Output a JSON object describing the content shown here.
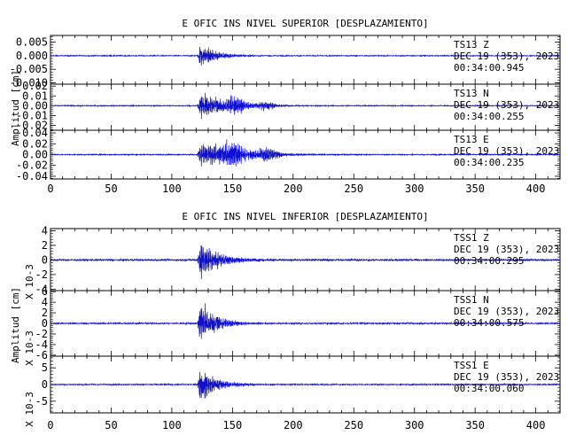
{
  "chart_data": [
    {
      "type": "line",
      "title": "E OFIC INS NIVEL SUPERIOR [DESPLAZAMIENTO]",
      "ylabel": "Amplitud [cm]",
      "xlim": [
        0,
        420
      ],
      "x_ticks": [
        "0",
        "50",
        "100",
        "150",
        "200",
        "250",
        "300",
        "350",
        "400"
      ],
      "line_color": "#1010d0",
      "panels": [
        {
          "component": "Z",
          "ylim": [
            -0.0105,
            0.0075
          ],
          "y_ticks": [
            {
              "v": 0.005,
              "label": "0.005"
            },
            {
              "v": 0.0,
              "label": "0.000"
            },
            {
              "v": -0.005,
              "label": "-0.005"
            },
            {
              "v": -0.01,
              "label": "-0.010"
            }
          ],
          "station": "TS13   Z",
          "date": "DEC 19 (353), 2023",
          "time": "00:34:00.945",
          "signal": {
            "onset": 121,
            "peak": 0.0055,
            "decay": 14,
            "noise": 0.00015,
            "bumps": []
          }
        },
        {
          "component": "N",
          "ylim": [
            -0.025,
            0.022
          ],
          "y_ticks": [
            {
              "v": 0.02,
              "label": "0.02"
            },
            {
              "v": 0.01,
              "label": "0.01"
            },
            {
              "v": 0.0,
              "label": "0.00"
            },
            {
              "v": -0.01,
              "label": "-0.01"
            },
            {
              "v": -0.02,
              "label": "-0.02"
            }
          ],
          "station": "TS13   N",
          "date": "DEC 19 (353), 2023",
          "time": "00:34:00.255",
          "signal": {
            "onset": 121,
            "peak": 0.017,
            "decay": 22,
            "noise": 0.0004,
            "bumps": [
              [
                152,
                0.007,
                8
              ],
              [
                178,
                0.004,
                8
              ]
            ]
          }
        },
        {
          "component": "E",
          "ylim": [
            -0.045,
            0.045
          ],
          "y_ticks": [
            {
              "v": 0.04,
              "label": "0.04"
            },
            {
              "v": 0.02,
              "label": "0.02"
            },
            {
              "v": 0.0,
              "label": "0.00"
            },
            {
              "v": -0.02,
              "label": "-0.02"
            },
            {
              "v": -0.04,
              "label": "-0.04"
            }
          ],
          "station": "TS13   E",
          "date": "DEC 19 (353), 2023",
          "time": "00:34:00.235",
          "signal": {
            "onset": 121,
            "peak": 0.028,
            "decay": 30,
            "noise": 0.0008,
            "bumps": [
              [
                150,
                0.018,
                9
              ],
              [
                178,
                0.011,
                9
              ]
            ]
          }
        }
      ]
    },
    {
      "type": "line",
      "title": "E OFIC INS NIVEL INFERIOR [DESPLAZAMIENTO]",
      "ylabel": "Amplitud [cm]",
      "scale_label": "X 10-3",
      "xlim": [
        0,
        420
      ],
      "x_ticks": [
        "0",
        "50",
        "100",
        "150",
        "200",
        "250",
        "300",
        "350",
        "400"
      ],
      "line_color": "#1010d0",
      "panels": [
        {
          "component": "Z",
          "ylim": [
            -4.2,
            4.3
          ],
          "y_ticks": [
            {
              "v": 4,
              "label": "4"
            },
            {
              "v": 2,
              "label": "2"
            },
            {
              "v": 0,
              "label": "0"
            },
            {
              "v": -2,
              "label": "-2"
            },
            {
              "v": -4,
              "label": "-4"
            }
          ],
          "station": "TSS1   Z",
          "date": "DEC 19 (353), 2023",
          "time": "00:34:00.295",
          "signal": {
            "onset": 121,
            "peak": 3.6,
            "decay": 16,
            "noise": 0.1,
            "bumps": []
          }
        },
        {
          "component": "N",
          "ylim": [
            -6.2,
            6.2
          ],
          "y_ticks": [
            {
              "v": 6,
              "label": "6"
            },
            {
              "v": 4,
              "label": "4"
            },
            {
              "v": 2,
              "label": "2"
            },
            {
              "v": 0,
              "label": "0"
            },
            {
              "v": -2,
              "label": "-2"
            },
            {
              "v": -4,
              "label": "-4"
            },
            {
              "v": -6,
              "label": "-6"
            }
          ],
          "station": "TSS1   N",
          "date": "DEC 19 (353), 2023",
          "time": "00:34:00.575",
          "signal": {
            "onset": 121,
            "peak": 5.2,
            "decay": 13,
            "noise": 0.12,
            "bumps": []
          }
        },
        {
          "component": "E",
          "ylim": [
            -8.5,
            8.5
          ],
          "y_ticks": [
            {
              "v": 5,
              "label": "5"
            },
            {
              "v": 0,
              "label": "0"
            },
            {
              "v": -5,
              "label": "-5"
            }
          ],
          "station": "TSS1   E",
          "date": "DEC 19 (353), 2023",
          "time": "00:34:00.060",
          "signal": {
            "onset": 121,
            "peak": 6.5,
            "decay": 14,
            "noise": 0.15,
            "bumps": []
          }
        }
      ]
    }
  ]
}
